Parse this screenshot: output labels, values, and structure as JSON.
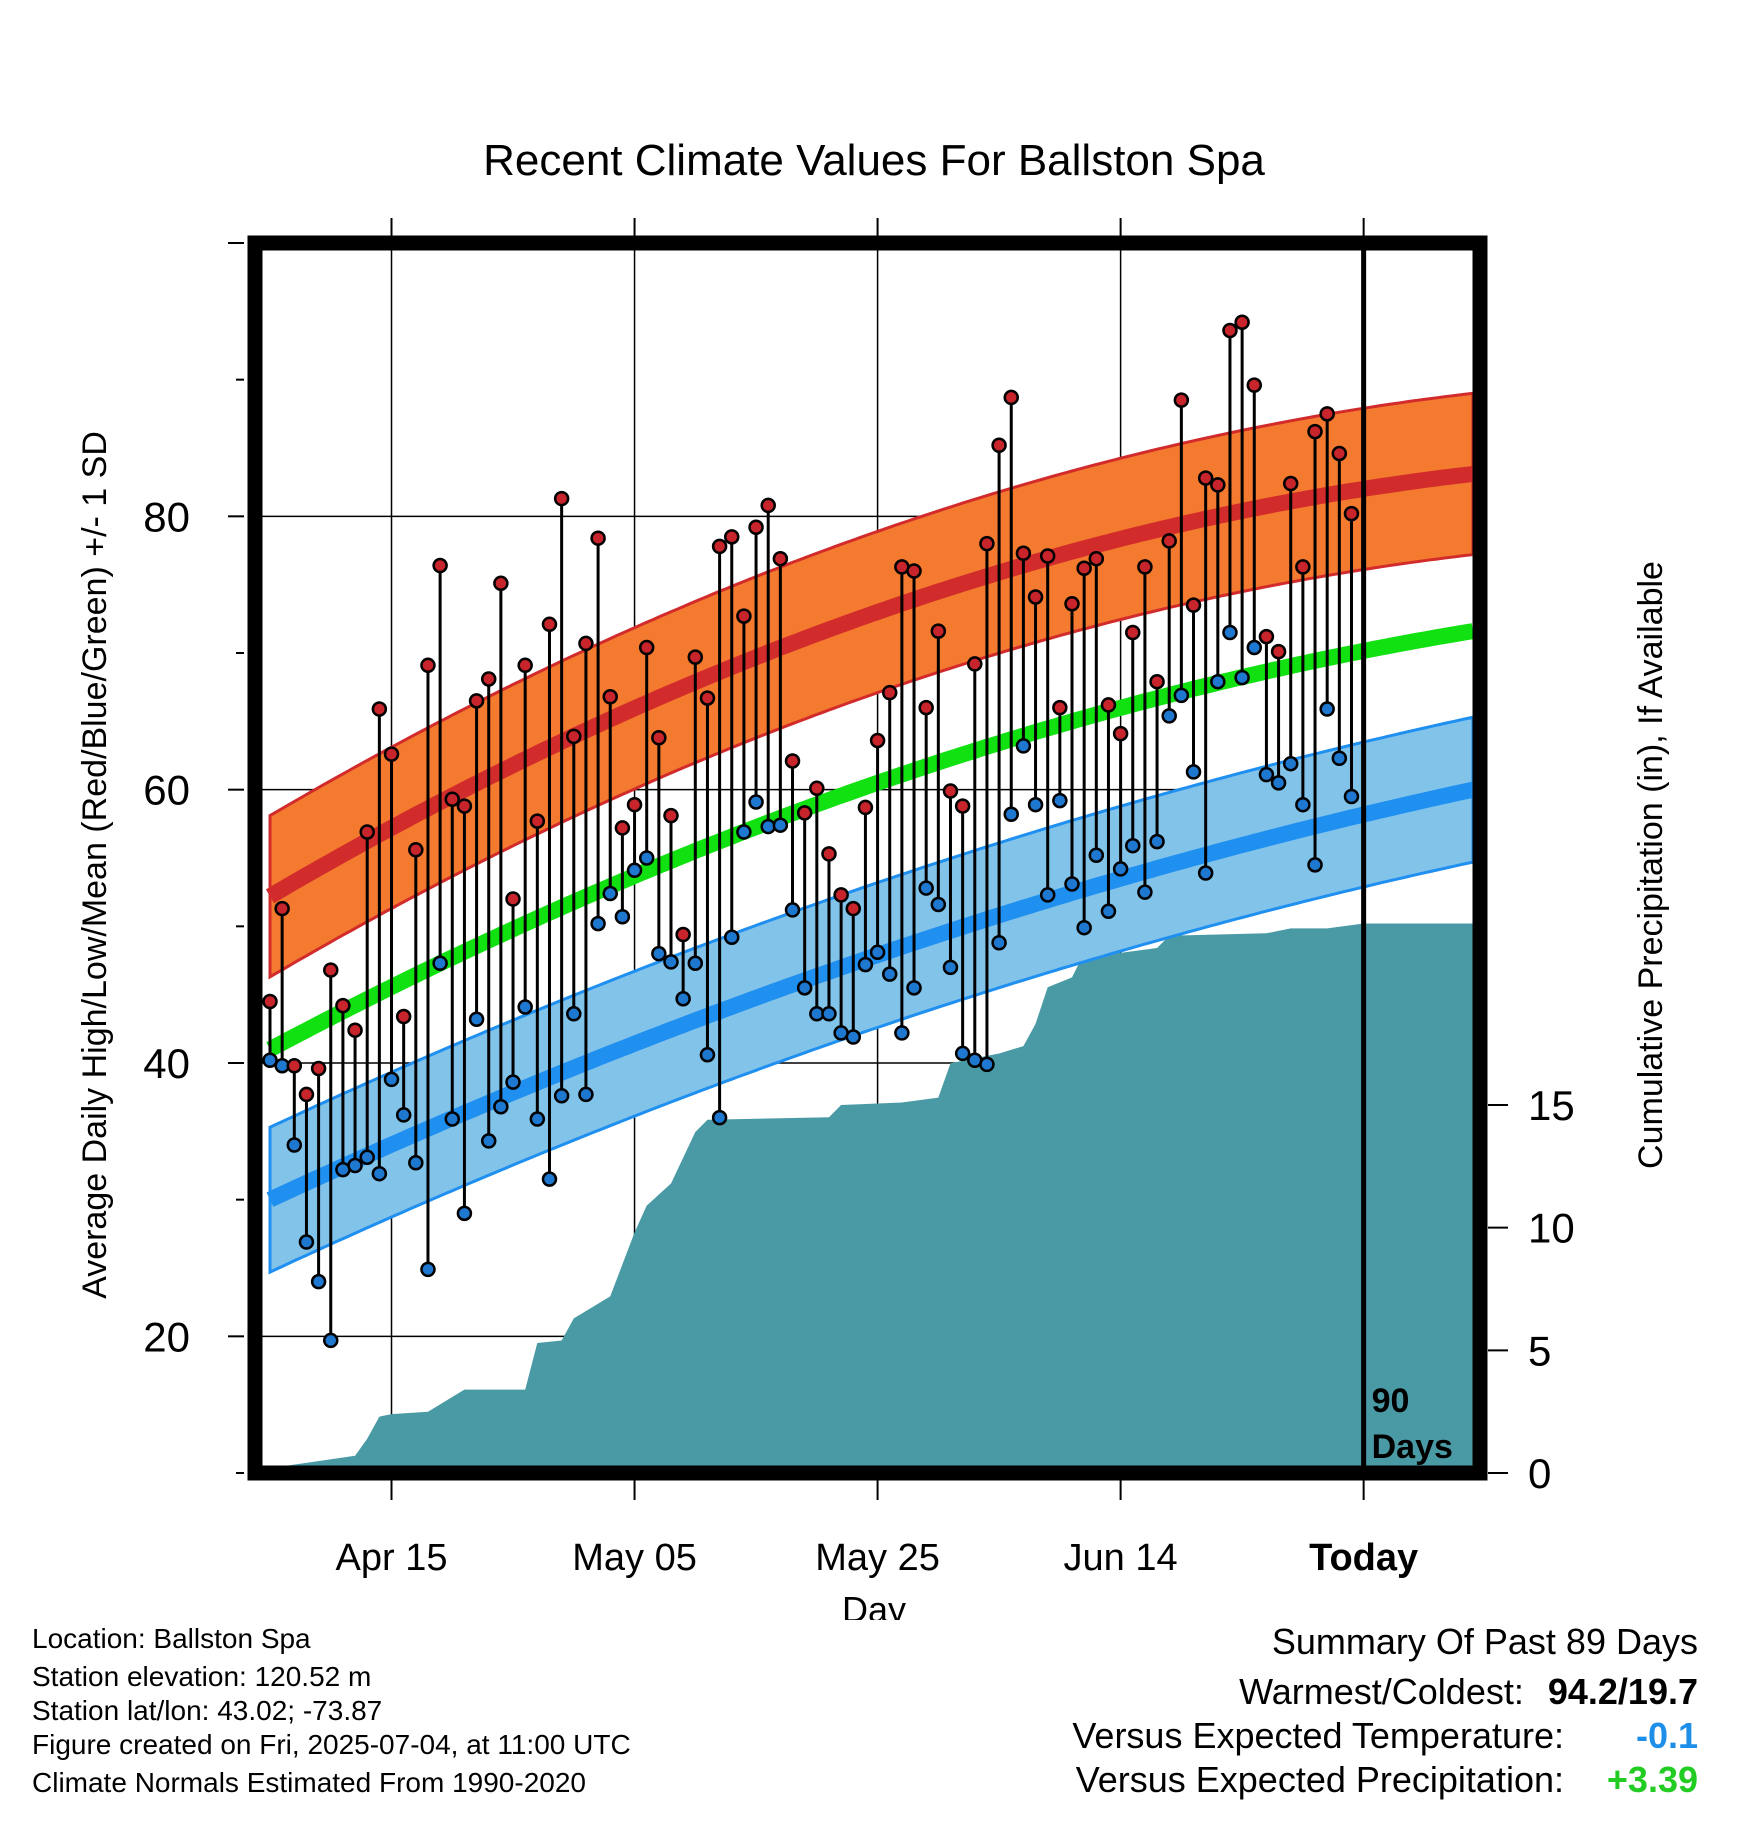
{
  "chart_data": {
    "type": "line",
    "title": "Recent Climate Values For Ballston Spa",
    "xlabel": "Day",
    "ylabel_left": "Average Daily High/Low/Mean (Red/Blue/Green) +/- 1 SD",
    "ylabel_right": "Cumulative Precipitation (in), If Available",
    "x_range_days": [
      -90,
      9
    ],
    "ylim_left": [
      10,
      100
    ],
    "ylim_right": [
      0,
      31
    ],
    "x_ticks": [
      {
        "day": -80,
        "label": "Apr 15"
      },
      {
        "day": -60,
        "label": "May 05"
      },
      {
        "day": -40,
        "label": "May 25"
      },
      {
        "day": -20,
        "label": "Jun 14"
      },
      {
        "day": 0,
        "label": "Today"
      }
    ],
    "y_ticks_left": [
      "20",
      "40",
      "60",
      "80"
    ],
    "y_ticks_left_values": [
      20,
      40,
      60,
      80
    ],
    "y_ticks_right": [
      "0",
      "5",
      "10",
      "15"
    ],
    "y_ticks_right_values": [
      0,
      5,
      10,
      15
    ],
    "window_label": "90 Days",
    "normals": {
      "high": {
        "day": [
          -90,
          -40,
          9
        ],
        "values": [
          52.2,
          73.0,
          83.1
        ],
        "sd": 5.9,
        "color": "#d22b2b",
        "band_color": "#f47a2f"
      },
      "low": {
        "day": [
          -90,
          -40,
          9
        ],
        "values": [
          30.0,
          47.9,
          60.0
        ],
        "sd": 5.3,
        "color": "#1f8ff0",
        "band_color": "#82c3ea"
      },
      "mean": {
        "day": [
          -90,
          -40,
          9
        ],
        "values": [
          41.0,
          60.5,
          71.6
        ],
        "color": "#11e011"
      }
    },
    "series": [
      {
        "name": "High",
        "color": "#c8242b",
        "values": [
          44.5,
          51.3,
          39.8,
          37.7,
          39.6,
          46.8,
          44.2,
          42.4,
          56.9,
          65.9,
          62.6,
          43.4,
          55.6,
          69.1,
          76.4,
          59.3,
          58.8,
          66.5,
          68.1,
          75.1,
          52.0,
          69.1,
          57.7,
          72.1,
          81.3,
          63.9,
          70.7,
          78.4,
          66.8,
          57.2,
          58.9,
          70.4,
          63.8,
          58.1,
          49.4,
          69.7,
          66.7,
          77.8,
          78.5,
          72.7,
          79.2,
          80.8,
          76.9,
          62.1,
          58.3,
          60.1,
          55.3,
          52.3,
          51.3,
          58.7,
          63.6,
          67.1,
          76.3,
          76.0,
          66.0,
          71.6,
          59.9,
          58.8,
          69.2,
          78.0,
          85.2,
          88.7,
          77.3,
          74.1,
          77.1,
          66.0,
          73.6,
          76.2,
          76.9,
          66.2,
          64.1,
          71.5,
          76.3,
          67.9,
          78.2,
          88.5,
          73.5,
          82.8,
          82.3,
          93.6,
          94.2,
          89.6,
          71.2,
          70.1,
          82.4,
          76.3,
          86.2,
          87.5,
          84.6,
          80.2
        ]
      },
      {
        "name": "Low",
        "color": "#1f78d0",
        "values": [
          40.2,
          39.8,
          34.0,
          26.9,
          24.0,
          19.7,
          32.2,
          32.5,
          33.1,
          31.9,
          38.8,
          36.2,
          32.7,
          24.9,
          47.3,
          35.9,
          29.0,
          43.2,
          34.3,
          36.8,
          38.6,
          44.1,
          35.9,
          31.5,
          37.6,
          43.6,
          37.7,
          50.2,
          52.4,
          50.7,
          54.1,
          55.0,
          48.0,
          47.4,
          44.7,
          47.3,
          40.6,
          36.0,
          49.2,
          56.9,
          59.1,
          57.3,
          57.4,
          51.2,
          45.5,
          43.6,
          43.6,
          42.2,
          41.9,
          47.2,
          48.1,
          46.5,
          42.2,
          45.5,
          52.8,
          51.6,
          47.0,
          40.7,
          40.2,
          39.9,
          48.8,
          58.2,
          63.2,
          58.9,
          52.3,
          59.2,
          53.1,
          49.9,
          55.2,
          51.1,
          54.2,
          55.9,
          52.5,
          56.2,
          65.4,
          66.9,
          61.3,
          53.9,
          67.9,
          71.5,
          68.2,
          70.4,
          61.1,
          60.5,
          61.9,
          58.9,
          54.5,
          65.9,
          62.3,
          59.5
        ]
      }
    ],
    "precip": {
      "day": [
        -90,
        -83,
        -82,
        -81,
        -80,
        -77,
        -74,
        -69,
        -68,
        -66,
        -65,
        -62,
        -60,
        -59,
        -57,
        -55,
        -54,
        -44,
        -43,
        -38,
        -35,
        -34,
        -31,
        -30,
        -28,
        -27,
        -26,
        -24,
        -23,
        -20,
        -17,
        -16,
        -8,
        -6,
        -3,
        0,
        9
      ],
      "values": [
        0.2,
        0.7,
        1.4,
        2.3,
        2.4,
        2.5,
        3.4,
        3.4,
        5.3,
        5.4,
        6.3,
        7.2,
        9.8,
        10.9,
        11.8,
        13.9,
        14.4,
        14.5,
        15.0,
        15.1,
        15.3,
        16.7,
        17.0,
        17.1,
        17.4,
        18.3,
        19.8,
        20.2,
        21.2,
        21.2,
        21.4,
        21.9,
        22.0,
        22.2,
        22.2,
        22.4,
        22.4
      ]
    }
  },
  "info": {
    "location": "Location: Ballston Spa",
    "elevation": "Station elevation: 120.52 m",
    "latlon": "Station lat/lon: 43.02; -73.87",
    "created": "Figure created on Fri, 2025-07-04, at 11:00 UTC",
    "normals": "Climate Normals Estimated From 1990-2020"
  },
  "summary": {
    "title": "Summary Of Past 89 Days",
    "warmest_label": "Warmest/Coldest:",
    "warmest_value": "94.2/19.7",
    "temp_label": "Versus Expected Temperature:",
    "temp_value": "-0.1",
    "temp_color": "#1e8fe8",
    "precip_label": "Versus Expected Precipitation:",
    "precip_value": "+3.39",
    "precip_color": "#22cc22"
  }
}
